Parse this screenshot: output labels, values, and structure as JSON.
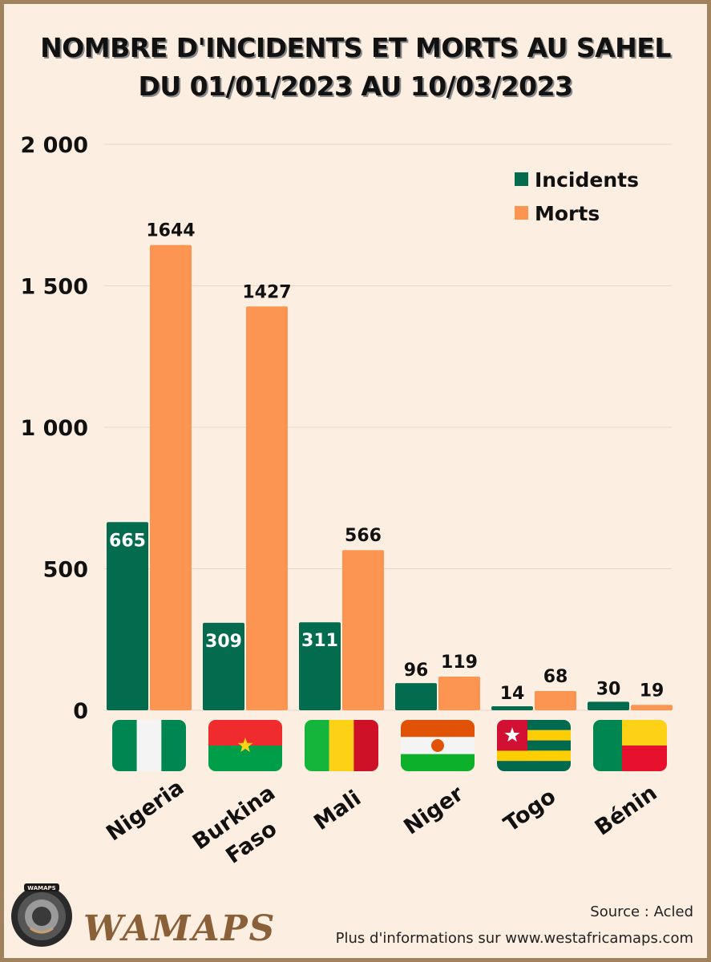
{
  "header": {
    "title_line1": "NOMBRE D'INCIDENTS ET MORTS AU SAHEL",
    "title_line2": "DU 01/01/2023 AU 10/03/2023"
  },
  "footer": {
    "source": "Source : Acled",
    "more_info": "Plus d'informations sur www.westafricamaps.com",
    "brand": "WAMAPS",
    "logo_text": "WAMAPS"
  },
  "colors": {
    "incidents": "#046c4e",
    "morts": "#fc9551",
    "background": "#fdeee2",
    "border": "#a0825f"
  },
  "chart_data": {
    "type": "bar",
    "categories": [
      "Nigeria",
      "Burkina Faso",
      "Mali",
      "Niger",
      "Togo",
      "Bénin"
    ],
    "category_lines": [
      [
        "Nigeria"
      ],
      [
        "Burkina",
        "Faso"
      ],
      [
        "Mali"
      ],
      [
        "Niger"
      ],
      [
        "Togo"
      ],
      [
        "Bénin"
      ]
    ],
    "series": [
      {
        "name": "Incidents",
        "values": [
          665,
          309,
          311,
          96,
          14,
          30
        ],
        "color": "#046c4e"
      },
      {
        "name": "Morts",
        "values": [
          1644,
          1427,
          566,
          119,
          68,
          19
        ],
        "color": "#fc9551"
      }
    ],
    "yticks": [
      "0",
      "500",
      "1 000",
      "1 500",
      "2 000"
    ],
    "ylim": [
      0,
      2000
    ],
    "grid": true,
    "legend_position": "top-right",
    "flags": [
      "nigeria-flag",
      "burkina-faso-flag",
      "mali-flag",
      "niger-flag",
      "togo-flag",
      "benin-flag"
    ]
  }
}
